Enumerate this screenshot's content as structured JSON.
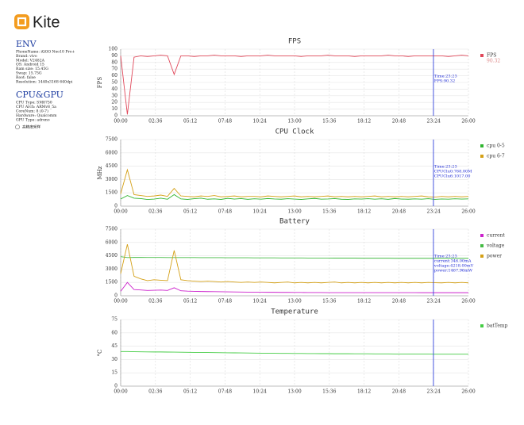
{
  "sidebar": {
    "logo": "Kite",
    "sections": [
      {
        "title": "ENV",
        "lines": [
          "PhoneName: iQOO Neo10 Pro+",
          "Brand: vivo",
          "Model: V2482A",
          "OS: Android 15",
          "Ram size: 15.45G",
          "Swap: 15.75G",
          "Root: false",
          "Resolution: 1440x3168 640dpi"
        ]
      },
      {
        "title": "CPU&GPU",
        "lines": [
          "CPU Type: SM8750",
          "CPU Arch: ARMv8_5a",
          "CoreNum: 8 (0-7)",
          "Hardware: Qualcomm",
          "GPU Type: adreno"
        ]
      }
    ],
    "option": "高精度采样"
  },
  "chart_data": [
    {
      "type": "line",
      "title": "FPS",
      "ylabel": "FPS",
      "x": [
        0,
        30,
        60,
        90,
        120,
        150,
        180,
        210,
        240,
        270,
        300,
        330,
        360,
        390,
        420,
        450,
        480,
        510,
        540,
        570,
        600,
        630,
        660,
        690,
        720,
        750,
        780,
        810,
        840,
        870,
        900,
        930,
        960,
        990,
        1020,
        1050,
        1080,
        1110,
        1140,
        1170,
        1200,
        1230,
        1260,
        1290,
        1320,
        1350,
        1380,
        1410,
        1440,
        1470,
        1500,
        1530,
        1560
      ],
      "xlim": [
        0,
        1560
      ],
      "xticks": [
        {
          "value": 0,
          "label": "00:00"
        },
        {
          "value": 156,
          "label": "02:36"
        },
        {
          "value": 312,
          "label": "05:12"
        },
        {
          "value": 468,
          "label": "07:48"
        },
        {
          "value": 624,
          "label": "10:24"
        },
        {
          "value": 780,
          "label": "13:00"
        },
        {
          "value": 936,
          "label": "15:36"
        },
        {
          "value": 1092,
          "label": "18:12"
        },
        {
          "value": 1248,
          "label": "20:48"
        },
        {
          "value": 1404,
          "label": "23:24"
        },
        {
          "value": 1560,
          "label": "26:00"
        }
      ],
      "ylim": [
        0,
        100
      ],
      "yticks": [
        0,
        10,
        20,
        30,
        40,
        50,
        60,
        70,
        80,
        90,
        100
      ],
      "grid": true,
      "series": [
        {
          "name": "FPS",
          "color": "#e0485a",
          "values": [
            90,
            2,
            88,
            90,
            89,
            90,
            91,
            90,
            62,
            90,
            90,
            89,
            90,
            90,
            91,
            90,
            90,
            90,
            89,
            90,
            90,
            90,
            91,
            90,
            90,
            90,
            90,
            89,
            90,
            90,
            90,
            91,
            90,
            90,
            90,
            89,
            90,
            90,
            90,
            90,
            91,
            90,
            90,
            89,
            90,
            90,
            90,
            90,
            90,
            89,
            90,
            91,
            90
          ]
        }
      ],
      "legend_note": "90.32",
      "cursor": 1403,
      "tooltip": [
        "Time:23:23",
        "FPS:90.32"
      ]
    },
    {
      "type": "line",
      "title": "CPU Clock",
      "ylabel": "MHz",
      "x": [
        0,
        30,
        60,
        90,
        120,
        150,
        180,
        210,
        240,
        270,
        300,
        330,
        360,
        390,
        420,
        450,
        480,
        510,
        540,
        570,
        600,
        630,
        660,
        690,
        720,
        750,
        780,
        810,
        840,
        870,
        900,
        930,
        960,
        990,
        1020,
        1050,
        1080,
        1110,
        1140,
        1170,
        1200,
        1230,
        1260,
        1290,
        1320,
        1350,
        1380,
        1410,
        1440,
        1470,
        1500,
        1530,
        1560
      ],
      "xlim": [
        0,
        1560
      ],
      "xticks": [
        {
          "value": 0,
          "label": "00:00"
        },
        {
          "value": 156,
          "label": "02:36"
        },
        {
          "value": 312,
          "label": "05:12"
        },
        {
          "value": 468,
          "label": "07:48"
        },
        {
          "value": 624,
          "label": "10:24"
        },
        {
          "value": 780,
          "label": "13:00"
        },
        {
          "value": 936,
          "label": "15:36"
        },
        {
          "value": 1092,
          "label": "18:12"
        },
        {
          "value": 1248,
          "label": "20:48"
        },
        {
          "value": 1404,
          "label": "23:24"
        },
        {
          "value": 1560,
          "label": "26:00"
        }
      ],
      "ylim": [
        0,
        7500
      ],
      "yticks": [
        0,
        1500,
        3000,
        4500,
        6000,
        7500
      ],
      "grid": true,
      "series": [
        {
          "name": "cpu 0-5",
          "color": "#2fb52f",
          "values": [
            800,
            1200,
            900,
            850,
            750,
            800,
            900,
            780,
            1300,
            820,
            760,
            840,
            900,
            780,
            820,
            760,
            880,
            800,
            850,
            770,
            830,
            790,
            860,
            810,
            780,
            840,
            800,
            760,
            820,
            870,
            790,
            810,
            850,
            780,
            760,
            820,
            800,
            840,
            790,
            830,
            770,
            860,
            800,
            780,
            820,
            790,
            840,
            768,
            810,
            790,
            830,
            800,
            820
          ]
        },
        {
          "name": "cpu 6-7",
          "color": "#d4a017",
          "values": [
            1400,
            4100,
            1300,
            1200,
            1100,
            1150,
            1250,
            1100,
            2000,
            1150,
            1100,
            1050,
            1150,
            1100,
            1200,
            1050,
            1100,
            1150,
            1050,
            1100,
            1100,
            1050,
            1150,
            1100,
            1050,
            1100,
            1150,
            1050,
            1100,
            1050,
            1100,
            1150,
            1050,
            1100,
            1050,
            1100,
            1050,
            1100,
            1150,
            1050,
            1100,
            1050,
            1100,
            1050,
            1100,
            1150,
            1050,
            1017,
            1100,
            1050,
            1100,
            1050,
            1100
          ]
        }
      ],
      "cursor": 1403,
      "tooltip": [
        "Time:23:23",
        "CPUClu0:768.00M",
        "CPUClu6:1017.00"
      ]
    },
    {
      "type": "line",
      "title": "Battery",
      "ylabel": "",
      "x": [
        0,
        30,
        60,
        90,
        120,
        150,
        180,
        210,
        240,
        270,
        300,
        330,
        360,
        390,
        420,
        450,
        480,
        510,
        540,
        570,
        600,
        630,
        660,
        690,
        720,
        750,
        780,
        810,
        840,
        870,
        900,
        930,
        960,
        990,
        1020,
        1050,
        1080,
        1110,
        1140,
        1170,
        1200,
        1230,
        1260,
        1290,
        1320,
        1350,
        1380,
        1410,
        1440,
        1470,
        1500,
        1530,
        1560
      ],
      "xlim": [
        0,
        1560
      ],
      "xticks": [
        {
          "value": 0,
          "label": "00:00"
        },
        {
          "value": 156,
          "label": "02:36"
        },
        {
          "value": 312,
          "label": "05:12"
        },
        {
          "value": 468,
          "label": "07:48"
        },
        {
          "value": 624,
          "label": "10:24"
        },
        {
          "value": 780,
          "label": "13:00"
        },
        {
          "value": 936,
          "label": "15:36"
        },
        {
          "value": 1092,
          "label": "18:12"
        },
        {
          "value": 1248,
          "label": "20:48"
        },
        {
          "value": 1404,
          "label": "23:24"
        },
        {
          "value": 1560,
          "label": "26:00"
        }
      ],
      "ylim": [
        0,
        7500
      ],
      "yticks": [
        0,
        1500,
        3000,
        4500,
        6000,
        7500
      ],
      "grid": true,
      "series": [
        {
          "name": "current",
          "color": "#cc22cc",
          "values": [
            500,
            1500,
            700,
            650,
            600,
            620,
            640,
            600,
            900,
            560,
            520,
            500,
            480,
            470,
            460,
            450,
            440,
            430,
            420,
            410,
            400,
            400,
            390,
            390,
            380,
            380,
            370,
            370,
            360,
            360,
            360,
            350,
            350,
            350,
            350,
            350,
            350,
            350,
            350,
            350,
            350,
            350,
            350,
            350,
            350,
            346,
            346,
            346,
            346,
            346,
            346,
            346,
            346
          ]
        },
        {
          "name": "voltage",
          "color": "#44bb44",
          "values": [
            4400,
            4300,
            4320,
            4320,
            4310,
            4310,
            4310,
            4300,
            4300,
            4300,
            4300,
            4300,
            4290,
            4290,
            4290,
            4290,
            4280,
            4280,
            4280,
            4280,
            4270,
            4270,
            4270,
            4270,
            4260,
            4260,
            4260,
            4260,
            4250,
            4250,
            4250,
            4250,
            4240,
            4240,
            4240,
            4240,
            4230,
            4230,
            4230,
            4230,
            4230,
            4220,
            4220,
            4220,
            4220,
            4220,
            4220,
            4218,
            4218,
            4218,
            4218,
            4218,
            4218
          ]
        },
        {
          "name": "power",
          "color": "#d4a017",
          "values": [
            2500,
            5800,
            2200,
            1900,
            1700,
            1800,
            1750,
            1700,
            5100,
            1800,
            1700,
            1650,
            1600,
            1650,
            1600,
            1550,
            1600,
            1550,
            1500,
            1550,
            1500,
            1550,
            1500,
            1450,
            1500,
            1550,
            1450,
            1500,
            1450,
            1500,
            1450,
            1500,
            1550,
            1450,
            1500,
            1450,
            1500,
            1450,
            1500,
            1450,
            1500,
            1450,
            1500,
            1450,
            1500,
            1450,
            1500,
            1468,
            1450,
            1500,
            1450,
            1500,
            1450
          ]
        }
      ],
      "cursor": 1403,
      "tooltip": [
        "Time:23:23",
        "current:346.00mA",
        "voltage:4218.00mV",
        "power:1467.96mW"
      ]
    },
    {
      "type": "line",
      "title": "Temperature",
      "ylabel": "°C",
      "x": [
        0,
        30,
        60,
        90,
        120,
        150,
        180,
        210,
        240,
        270,
        300,
        330,
        360,
        390,
        420,
        450,
        480,
        510,
        540,
        570,
        600,
        630,
        660,
        690,
        720,
        750,
        780,
        810,
        840,
        870,
        900,
        930,
        960,
        990,
        1020,
        1050,
        1080,
        1110,
        1140,
        1170,
        1200,
        1230,
        1260,
        1290,
        1320,
        1350,
        1380,
        1410,
        1440,
        1470,
        1500,
        1530,
        1560
      ],
      "xlim": [
        0,
        1560
      ],
      "xticks": [
        {
          "value": 0,
          "label": "00:00"
        },
        {
          "value": 156,
          "label": "02:36"
        },
        {
          "value": 312,
          "label": "05:12"
        },
        {
          "value": 468,
          "label": "07:48"
        },
        {
          "value": 624,
          "label": "10:24"
        },
        {
          "value": 780,
          "label": "13:00"
        },
        {
          "value": 936,
          "label": "15:36"
        },
        {
          "value": 1092,
          "label": "18:12"
        },
        {
          "value": 1248,
          "label": "20:48"
        },
        {
          "value": 1404,
          "label": "23:24"
        },
        {
          "value": 1560,
          "label": "26:00"
        }
      ],
      "ylim": [
        0,
        75
      ],
      "yticks": [
        0,
        15,
        30,
        45,
        60,
        75
      ],
      "grid": true,
      "series": [
        {
          "name": "batTemp",
          "color": "#44cc44",
          "values": [
            39,
            39,
            38.8,
            38.7,
            38.6,
            38.5,
            38.5,
            38.4,
            38.3,
            38.2,
            38.1,
            38,
            38,
            37.9,
            37.8,
            37.7,
            37.6,
            37.5,
            37.4,
            37.3,
            37.2,
            37.1,
            37,
            37,
            36.9,
            36.9,
            36.8,
            36.8,
            36.7,
            36.7,
            36.6,
            36.6,
            36.5,
            36.5,
            36.5,
            36.4,
            36.4,
            36.4,
            36.3,
            36.3,
            36.3,
            36.2,
            36.2,
            36.2,
            36.1,
            36.1,
            36.1,
            36,
            36,
            36,
            36,
            36,
            36
          ]
        }
      ],
      "cursor": 1403
    }
  ]
}
